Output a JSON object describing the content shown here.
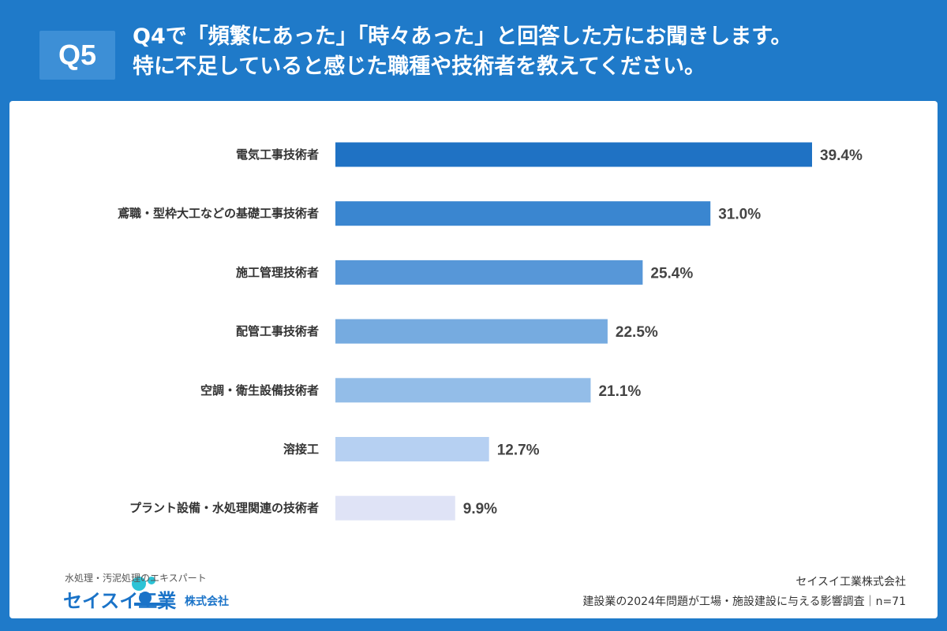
{
  "header": {
    "badge": "Q5",
    "question_line1": "Q4で「頻繁にあった」「時々あった」と回答した方にお聞きします。",
    "question_line2": "特に不足していると感じた職種や技術者を教えてください。"
  },
  "chart_data": {
    "type": "bar",
    "orientation": "horizontal",
    "categories": [
      "電気工事技術者",
      "鳶職・型枠大工などの基礎工事技術者",
      "施工管理技術者",
      "配管工事技術者",
      "空調・衛生設備技術者",
      "溶接工",
      "プラント設備・水処理関連の技術者"
    ],
    "values": [
      39.4,
      31.0,
      25.4,
      22.5,
      21.1,
      12.7,
      9.9
    ],
    "value_labels": [
      "39.4%",
      "31.0%",
      "25.4%",
      "22.5%",
      "21.1%",
      "12.7%",
      "9.9%"
    ],
    "unit": "%",
    "xlim": [
      0,
      39.4
    ],
    "grid": false,
    "legend": "none",
    "bar_colors": [
      "#1f72c4",
      "#3a86d0",
      "#5797d8",
      "#76abe0",
      "#93bde8",
      "#b6d0f2",
      "#dfe3f6"
    ]
  },
  "footer": {
    "logo_tagline": "水処理・汚泥処理のエキスパート",
    "logo_name": "セイスイ工業",
    "logo_suffix": "株式会社",
    "company": "セイスイ工業株式会社",
    "survey": "建設業の2024年問題が工場・施設建設に与える影響調査｜n=71"
  },
  "colors": {
    "brand_blue": "#1f7ac9",
    "badge_blue": "#3d8fd6",
    "logo_blue": "#1a73c8",
    "logo_teal": "#2cc3d6"
  }
}
